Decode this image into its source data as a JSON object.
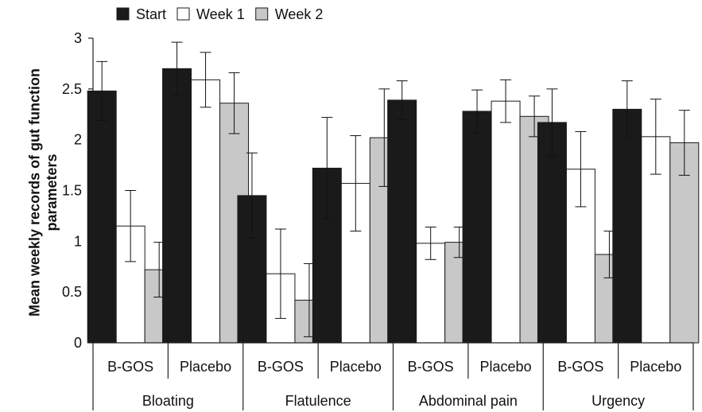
{
  "chart_data": {
    "type": "bar",
    "title": "",
    "xlabel": "",
    "ylabel": "Mean weekly records of gut function parameters",
    "ylim": [
      0,
      3
    ],
    "yticks": [
      "0",
      "0.5",
      "1",
      "1.5",
      "2",
      "2.5",
      "3"
    ],
    "grid": false,
    "legend_position": "top-left",
    "groups": [
      "Bloating",
      "Flatulence",
      "Abdominal pain",
      "Urgency"
    ],
    "categories": [
      "B-GOS",
      "Placebo",
      "B-GOS",
      "Placebo",
      "B-GOS",
      "Placebo",
      "B-GOS",
      "Placebo"
    ],
    "series": [
      {
        "name": "Start",
        "color": "#1a1a1a",
        "values": [
          2.48,
          2.7,
          1.45,
          1.72,
          2.39,
          2.28,
          2.17,
          2.3
        ],
        "error": [
          0.29,
          0.26,
          0.42,
          0.5,
          0.19,
          0.21,
          0.33,
          0.28
        ]
      },
      {
        "name": "Week 1",
        "color": "#ffffff",
        "values": [
          1.15,
          2.59,
          0.68,
          1.57,
          0.98,
          2.38,
          1.71,
          2.03
        ],
        "error": [
          0.35,
          0.27,
          0.44,
          0.47,
          0.16,
          0.21,
          0.37,
          0.37
        ]
      },
      {
        "name": "Week 2",
        "color": "#c8c8c8",
        "values": [
          0.72,
          2.36,
          0.42,
          2.02,
          0.99,
          2.23,
          0.87,
          1.97
        ],
        "error": [
          0.27,
          0.3,
          0.36,
          0.48,
          0.15,
          0.2,
          0.23,
          0.32
        ]
      }
    ]
  }
}
